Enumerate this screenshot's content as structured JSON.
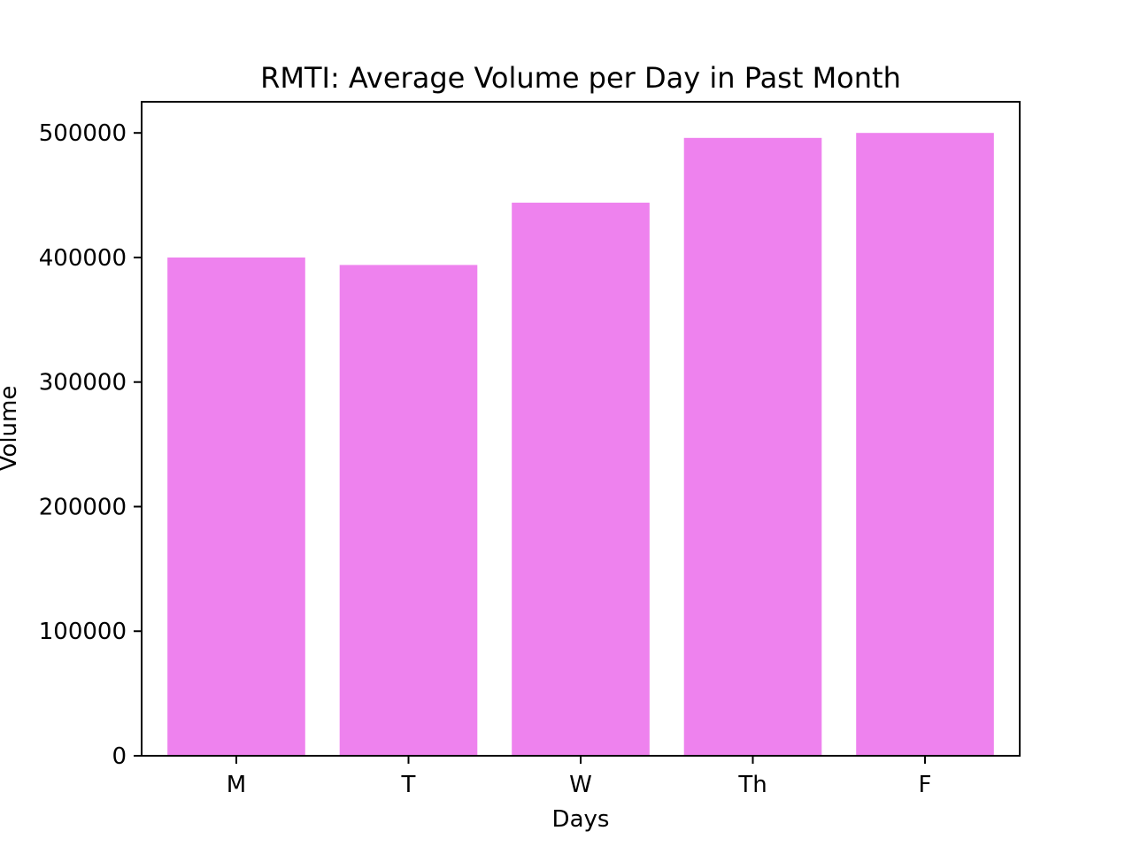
{
  "chart_data": {
    "type": "bar",
    "title": "RMTI: Average Volume per Day in Past Month",
    "xlabel": "Days",
    "ylabel": "Volume",
    "categories": [
      "M",
      "T",
      "W",
      "Th",
      "F"
    ],
    "values": [
      400000,
      394000,
      444000,
      496000,
      500000
    ],
    "ylim": [
      0,
      525000
    ],
    "yticks": [
      0,
      100000,
      200000,
      300000,
      400000,
      500000
    ],
    "ytick_labels": [
      "0",
      "100000",
      "200000",
      "300000",
      "400000",
      "500000"
    ],
    "bar_color": "#ee82ee",
    "grid": false,
    "legend": "none"
  }
}
